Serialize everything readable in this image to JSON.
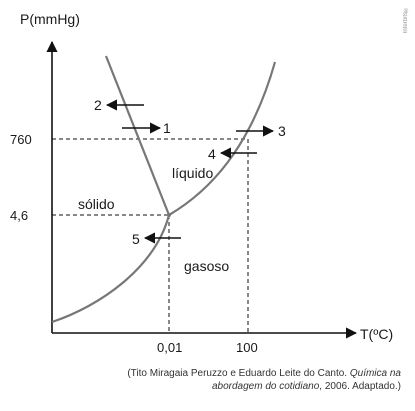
{
  "axes": {
    "y_label": "P(mmHg)",
    "x_label": "T(ºC)",
    "y_ticks": [
      "760",
      "4,6"
    ],
    "x_ticks": [
      "0,01",
      "100"
    ]
  },
  "regions": {
    "solid": "sólido",
    "liquid": "líquido",
    "gas": "gasoso"
  },
  "arrows": [
    "1",
    "2",
    "3",
    "4",
    "5"
  ],
  "credit": {
    "line1_prefix": "(Tito Miragaia Peruzzo e Eduardo Leite do Canto. ",
    "line1_italic": "Química na",
    "line2_italic": "abordagem do cotidiano",
    "line2_suffix": ", 2006. Adaptado.)"
  },
  "watermark": "Interbits®"
}
